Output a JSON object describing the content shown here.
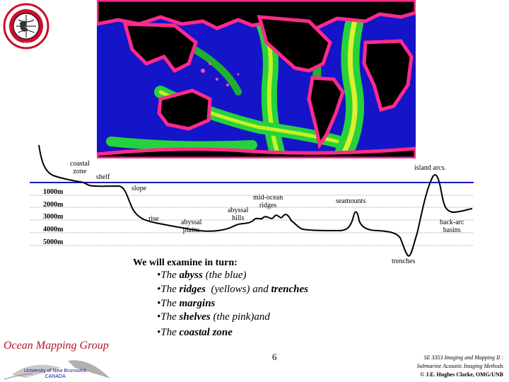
{
  "logo": {
    "ring_text": "GEODESY AND GEOMATICS ENGINEERING",
    "bottom_text": "UNB"
  },
  "depth_ticks": [
    "1000m",
    "2000m",
    "3000m",
    "4000m",
    "5000m"
  ],
  "features": {
    "coastal_zone": "coastal\nzone",
    "shelf": "shelf",
    "slope": "slope",
    "rise": "rise",
    "abyssal_plains": "abyssal\nplains",
    "abyssal_hills": "abyssal\nhills",
    "mid_ocean_ridges": "mid-ocean\nridges",
    "seamounts": "seamounts",
    "trenches": "trenches",
    "island_arcs": "island arcs.",
    "back_arc_basins": "back-arc\nbasins"
  },
  "intro": "We will examine in turn:",
  "bullets": [
    {
      "pre": "•The ",
      "bold": "abyss",
      "post": " (the blue)"
    },
    {
      "pre": "•The ",
      "bold": "ridges",
      "post": "  (yellows) and ",
      "bold2": "trenches"
    },
    {
      "pre": "•The ",
      "bold": "margins",
      "post": ""
    },
    {
      "pre": "•The ",
      "bold": "shelves",
      "post": " (the pink)and"
    },
    {
      "pre": "•The ",
      "bold": "coastal zone",
      "post": ""
    }
  ],
  "page_number": "6",
  "footer": {
    "group_name": "Ocean Mapping Group",
    "university": "University of New Brunswick",
    "country": "CANADA",
    "course": "SE 3353 Imaging and Mapping II :",
    "course_sub": "Submarine Acoustic Imaging Methods",
    "author": "© J.E. Hughes Clarke, OMG/UNB"
  },
  "colors": {
    "sea_level_line": "#1a1ab5",
    "depth_grid": "#9a9ad8",
    "profile": "#000000",
    "group_name": "#b5112c"
  }
}
